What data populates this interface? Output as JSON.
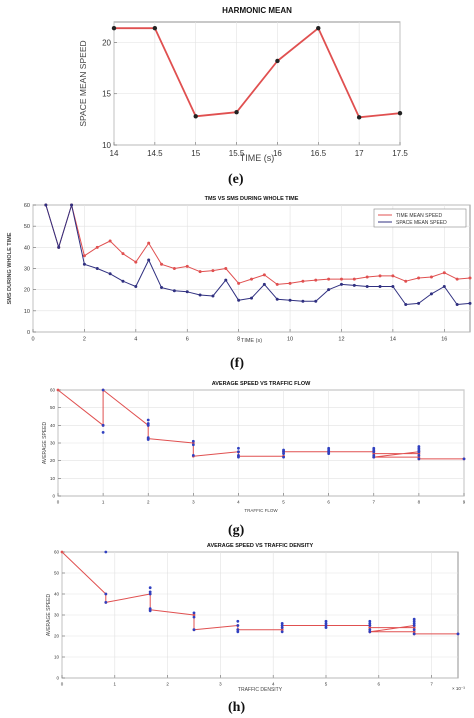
{
  "captions": [
    "(e)",
    "(f)",
    "(g)",
    "(h)"
  ],
  "chart_data": [
    {
      "type": "line",
      "title": "HARMONIC MEAN",
      "xlabel": "TIME (s)",
      "ylabel": "SPACE MEAN SPEED",
      "xlim": [
        14,
        17.5
      ],
      "ylim": [
        10,
        22
      ],
      "xticks": [
        14,
        14.5,
        15,
        15.5,
        16,
        16.5,
        17,
        17.5
      ],
      "yticks": [
        10,
        15,
        20
      ],
      "grid": true,
      "series": [
        {
          "color": "#e05050",
          "x": [
            14,
            14.5,
            15,
            15.5,
            16,
            16.5,
            17,
            17.5
          ],
          "y": [
            21.4,
            21.4,
            12.8,
            13.2,
            18.2,
            21.4,
            12.7,
            13.1
          ]
        }
      ]
    },
    {
      "type": "line",
      "title": "TMS VS SMS DURING WHOLE TIME",
      "xlabel": "TIME (s)",
      "ylabel": "SMS DURING WHOLE TIME",
      "xlim": [
        0,
        17
      ],
      "ylim": [
        0,
        60
      ],
      "xticks": [
        0,
        2,
        4,
        6,
        8,
        10,
        12,
        14,
        16
      ],
      "yticks": [
        0,
        10,
        20,
        30,
        40,
        50,
        60
      ],
      "grid": true,
      "legend": "top-right",
      "series": [
        {
          "name": "TIME MEAN SPEED",
          "color": "#e05050",
          "x": [
            0.5,
            1,
            1.5,
            2,
            2.5,
            3,
            3.5,
            4,
            4.5,
            5,
            5.5,
            6,
            6.5,
            7,
            7.5,
            8,
            8.5,
            9,
            9.5,
            10,
            10.5,
            11,
            11.5,
            12,
            12.5,
            13,
            13.5,
            14,
            14.5,
            15,
            15.5,
            16,
            16.5,
            17
          ],
          "y": [
            60,
            40,
            60,
            36,
            40,
            43,
            37,
            33,
            42,
            32,
            30,
            31,
            28.5,
            29,
            30,
            23,
            25,
            27,
            22.5,
            23,
            24,
            24.5,
            25,
            25,
            25,
            26,
            26.5,
            26.5,
            24,
            25.5,
            26,
            28,
            25,
            25.5
          ]
        },
        {
          "name": "SPACE MEAN SPEED",
          "color": "#303080",
          "x": [
            0.5,
            1,
            1.5,
            2,
            2.5,
            3,
            3.5,
            4,
            4.5,
            5,
            5.5,
            6,
            6.5,
            7,
            7.5,
            8,
            8.5,
            9,
            9.5,
            10,
            10.5,
            11,
            11.5,
            12,
            12.5,
            13,
            13.5,
            14,
            14.5,
            15,
            15.5,
            16,
            16.5,
            17
          ],
          "y": [
            60,
            40,
            60,
            32,
            30,
            27.5,
            24,
            21.5,
            34,
            21,
            19.5,
            19,
            17.5,
            17,
            24.5,
            15,
            16,
            22.5,
            15.5,
            15,
            14.5,
            14.5,
            20,
            22.5,
            22,
            21.5,
            21.5,
            21.5,
            13,
            13.5,
            18,
            21.5,
            13,
            13.5
          ]
        }
      ]
    },
    {
      "type": "line",
      "title": "AVERAGE SPEED VS TRAFFIC FLOW",
      "xlabel": "TRAFFIC FLOW",
      "ylabel": "AVERAGE SPEED",
      "xlim": [
        0,
        9
      ],
      "ylim": [
        0,
        60
      ],
      "xticks": [
        0,
        1,
        2,
        3,
        4,
        5,
        6,
        7,
        8,
        9
      ],
      "yticks": [
        0,
        10,
        20,
        30,
        40,
        50,
        60
      ],
      "grid": true,
      "series": [
        {
          "color": "#e05050",
          "x": [
            0,
            1,
            1,
            2,
            2,
            3,
            3,
            4,
            4,
            5,
            5,
            6,
            6,
            7,
            7,
            8,
            8,
            7,
            7,
            8,
            8,
            9
          ],
          "y": [
            60,
            40,
            60,
            40,
            32.5,
            30,
            22.5,
            25,
            22.5,
            22.5,
            25,
            25,
            25,
            25,
            22,
            25,
            24,
            24,
            22,
            22,
            21,
            21
          ]
        },
        {
          "color": "#3040c0",
          "markers_only": true,
          "x": [
            1,
            1,
            1,
            2,
            2,
            2,
            2,
            2,
            3,
            3,
            3,
            4,
            4,
            4,
            4,
            5,
            5,
            5,
            5,
            6,
            6,
            6,
            6,
            7,
            7,
            7,
            7,
            7,
            8,
            8,
            8,
            8,
            8,
            8,
            9
          ],
          "y": [
            60,
            40,
            36,
            43,
            41,
            40,
            33,
            32,
            31,
            29,
            23,
            27,
            25,
            23,
            22,
            26,
            25,
            24,
            22,
            27,
            26,
            25,
            24,
            27,
            26,
            25,
            23,
            22,
            28,
            27,
            26,
            25,
            23,
            21,
            21
          ]
        }
      ]
    },
    {
      "type": "line",
      "title": "AVERAGE SPEED VS TRAFFIC DENSITY",
      "xlabel": "TRAFFIC DENSITY",
      "ylabel": "AVERAGE SPEED",
      "axis_exponent": "× 10⁻³",
      "xlim": [
        0,
        7.5
      ],
      "ylim": [
        0,
        60
      ],
      "xticks": [
        0,
        1,
        2,
        3,
        4,
        5,
        6,
        7
      ],
      "yticks": [
        0,
        10,
        20,
        30,
        40,
        50,
        60
      ],
      "grid": true,
      "series": [
        {
          "color": "#e05050",
          "x": [
            0,
            0.83,
            0.83,
            1.67,
            1.67,
            2.5,
            2.5,
            3.33,
            3.33,
            4.17,
            4.17,
            5,
            5,
            5.83,
            5.83,
            6.67,
            6.67,
            5.83,
            5.83,
            6.67,
            6.67,
            7.5
          ],
          "y": [
            60,
            40,
            36,
            40,
            32.5,
            30,
            23,
            25,
            23,
            23,
            25,
            25,
            25,
            25,
            22,
            25,
            24,
            24,
            22,
            22,
            21,
            21
          ]
        },
        {
          "color": "#3040c0",
          "markers_only": true,
          "x": [
            0.83,
            0.83,
            0.83,
            1.67,
            1.67,
            1.67,
            1.67,
            1.67,
            2.5,
            2.5,
            2.5,
            3.33,
            3.33,
            3.33,
            3.33,
            4.17,
            4.17,
            4.17,
            4.17,
            5,
            5,
            5,
            5,
            5.83,
            5.83,
            5.83,
            5.83,
            5.83,
            6.67,
            6.67,
            6.67,
            6.67,
            6.67,
            6.67,
            7.5
          ],
          "y": [
            60,
            40,
            36,
            43,
            41,
            40,
            33,
            32,
            31,
            29,
            23,
            27,
            25,
            23,
            22,
            26,
            25,
            24,
            22,
            27,
            26,
            25,
            24,
            27,
            26,
            25,
            23,
            22,
            28,
            27,
            26,
            25,
            23,
            21,
            21
          ]
        }
      ]
    }
  ]
}
